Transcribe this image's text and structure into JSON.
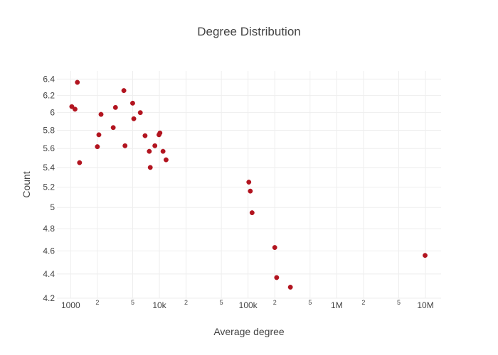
{
  "chart_data": {
    "type": "scatter",
    "title": "Degree Distribution",
    "xlabel": "Average degree",
    "ylabel": "Count",
    "xscale": "log",
    "yscale": "log",
    "xlim": [
      700,
      15000000
    ],
    "ylim": [
      4.2,
      6.5
    ],
    "grid": true,
    "legend": "none",
    "marker_color": "#b2141f",
    "x_ticks": [
      {
        "value": 1000,
        "label": "1000",
        "major": true
      },
      {
        "value": 2000,
        "label": "2",
        "major": false
      },
      {
        "value": 5000,
        "label": "5",
        "major": false
      },
      {
        "value": 10000,
        "label": "10k",
        "major": true
      },
      {
        "value": 20000,
        "label": "2",
        "major": false
      },
      {
        "value": 50000,
        "label": "5",
        "major": false
      },
      {
        "value": 100000,
        "label": "100k",
        "major": true
      },
      {
        "value": 200000,
        "label": "2",
        "major": false
      },
      {
        "value": 500000,
        "label": "5",
        "major": false
      },
      {
        "value": 1000000,
        "label": "1M",
        "major": true
      },
      {
        "value": 2000000,
        "label": "2",
        "major": false
      },
      {
        "value": 5000000,
        "label": "5",
        "major": false
      },
      {
        "value": 10000000,
        "label": "10M",
        "major": true
      }
    ],
    "y_ticks": [
      {
        "value": 4.2,
        "label": "4.2"
      },
      {
        "value": 4.4,
        "label": "4.4"
      },
      {
        "value": 4.6,
        "label": "4.6"
      },
      {
        "value": 4.8,
        "label": "4.8"
      },
      {
        "value": 5.0,
        "label": "5"
      },
      {
        "value": 5.2,
        "label": "5.2"
      },
      {
        "value": 5.4,
        "label": "5.4"
      },
      {
        "value": 5.6,
        "label": "5.6"
      },
      {
        "value": 5.8,
        "label": "5.8"
      },
      {
        "value": 6.0,
        "label": "6"
      },
      {
        "value": 6.2,
        "label": "6.2"
      },
      {
        "value": 6.4,
        "label": "6.4"
      }
    ],
    "series": [
      {
        "points": [
          {
            "x": 1030,
            "y": 6.07
          },
          {
            "x": 1120,
            "y": 6.04
          },
          {
            "x": 1190,
            "y": 6.36
          },
          {
            "x": 1260,
            "y": 5.45
          },
          {
            "x": 2000,
            "y": 5.62
          },
          {
            "x": 2080,
            "y": 5.75
          },
          {
            "x": 2200,
            "y": 5.98
          },
          {
            "x": 3020,
            "y": 5.83
          },
          {
            "x": 3200,
            "y": 6.06
          },
          {
            "x": 3980,
            "y": 6.26
          },
          {
            "x": 4100,
            "y": 5.63
          },
          {
            "x": 5000,
            "y": 6.11
          },
          {
            "x": 5150,
            "y": 5.93
          },
          {
            "x": 6100,
            "y": 6.0
          },
          {
            "x": 6900,
            "y": 5.74
          },
          {
            "x": 7700,
            "y": 5.57
          },
          {
            "x": 7900,
            "y": 5.4
          },
          {
            "x": 8900,
            "y": 5.63
          },
          {
            "x": 9900,
            "y": 5.75
          },
          {
            "x": 10150,
            "y": 5.77
          },
          {
            "x": 11000,
            "y": 5.57
          },
          {
            "x": 11900,
            "y": 5.48
          },
          {
            "x": 102000,
            "y": 5.25
          },
          {
            "x": 106000,
            "y": 5.16
          },
          {
            "x": 111000,
            "y": 4.95
          },
          {
            "x": 200000,
            "y": 4.63
          },
          {
            "x": 210000,
            "y": 4.37
          },
          {
            "x": 300000,
            "y": 4.29
          },
          {
            "x": 9900000,
            "y": 4.56
          }
        ]
      }
    ]
  }
}
